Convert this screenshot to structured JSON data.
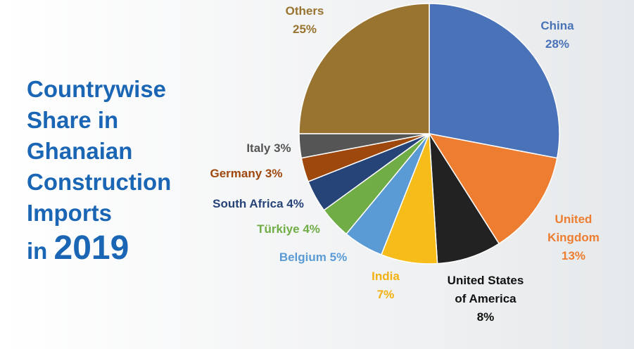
{
  "chart_data": {
    "type": "pie",
    "title_lines": [
      "Countrywise",
      "Share in",
      "Ghanaian",
      "Construction",
      "Imports"
    ],
    "title_year_prefix": "in",
    "title_year": "2019",
    "categories": [
      "China",
      "United Kingdom",
      "United States of America",
      "India",
      "Belgium",
      "Türkiye",
      "South Africa",
      "Germany",
      "Italy",
      "Others"
    ],
    "values": [
      28,
      13,
      8,
      7,
      5,
      4,
      4,
      3,
      3,
      25
    ],
    "value_labels": [
      "28%",
      "13%",
      "8%",
      "7%",
      "5%",
      "4%",
      "4%",
      "3%",
      "3%",
      "25%"
    ],
    "colors": [
      "#4a72b8",
      "#ed7d31",
      "#222222",
      "#f6bd1a",
      "#5b9bd5",
      "#70ad47",
      "#264478",
      "#9e480e",
      "#555555",
      "#997330"
    ],
    "label_colors": [
      "#4a72b8",
      "#ed7d31",
      "#111111",
      "#f2b10f",
      "#5b9bd5",
      "#70ad47",
      "#264478",
      "#9e480e",
      "#555555",
      "#997330"
    ]
  }
}
